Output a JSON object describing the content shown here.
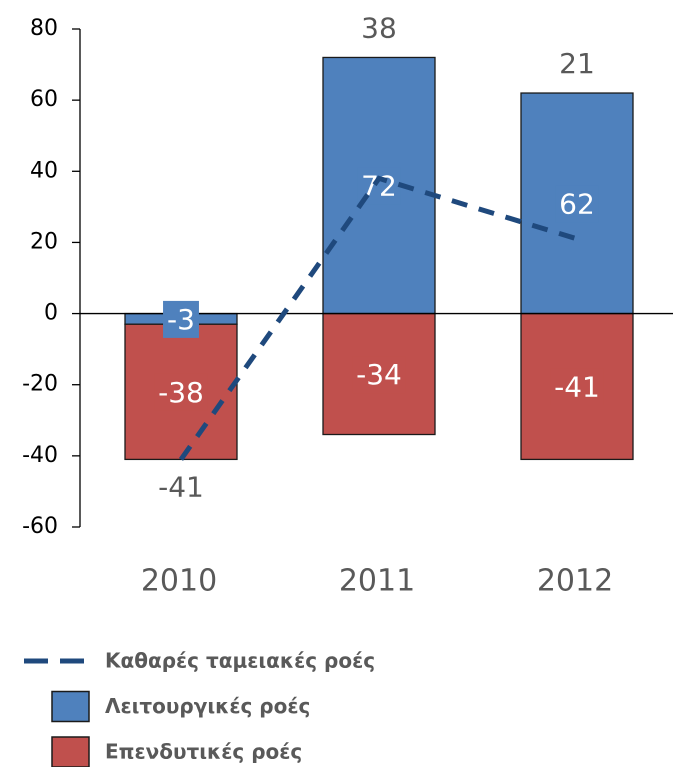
{
  "chart_data": {
    "type": "bar",
    "stacked": true,
    "categories": [
      "2010",
      "2011",
      "2012"
    ],
    "series": [
      {
        "name": "Καθαρές ταμειακές ροές",
        "type": "line",
        "color": "#1f497d",
        "dashed": true,
        "values": [
          -41,
          38,
          21
        ]
      },
      {
        "name": "Λειτουργικές ροές",
        "type": "bar",
        "color": "#4f81bd",
        "values": [
          -3,
          72,
          62
        ]
      },
      {
        "name": "Επενδυτικές ροές",
        "type": "bar",
        "color": "#c0504d",
        "values": [
          -38,
          -34,
          -41
        ]
      }
    ],
    "ylim": [
      -60,
      80
    ],
    "yticks": [
      -60,
      -40,
      -20,
      0,
      20,
      40,
      60,
      80
    ],
    "grid": false,
    "data_labels": true,
    "legend": "bottom"
  }
}
